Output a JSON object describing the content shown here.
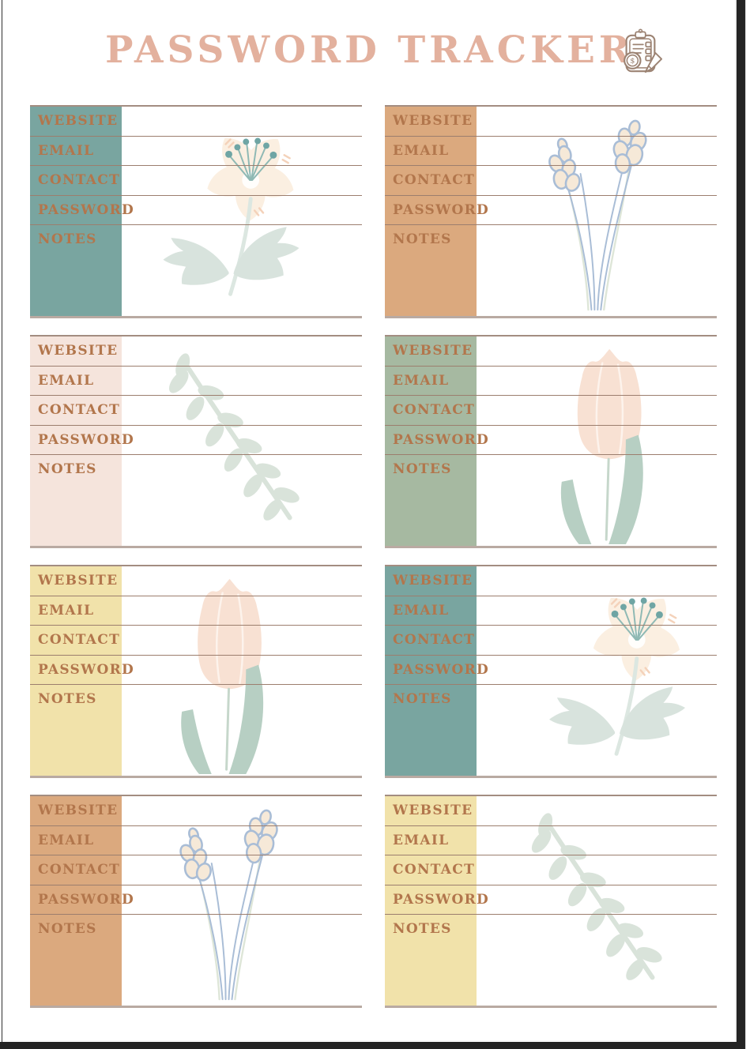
{
  "page": {
    "title": "PASSWORD TRACKER",
    "header_icon": "clipboard-dollar-pencil-icon"
  },
  "field_labels": [
    "WEBSITE",
    "EMAIL",
    "CONTACT",
    "PASSWORD",
    "NOTES"
  ],
  "theme": {
    "page_background": "#ffffff",
    "title_color": "#e3b19e",
    "label_color": "#b2764c",
    "row_line_color": "#9c7e6e",
    "card_top_line_color": "#a38d81",
    "card_bottom_line_color": "#b9aaa2",
    "icon_outline_color": "#9c8373",
    "viewer_edge_color": "#242424"
  },
  "illustration_colors": {
    "blossom_petal": "#fbefe1",
    "blossom_accent": "#f4d2ba",
    "blossom_stamen": "#6fa5a4",
    "leaf_sage": "#d8e3dd",
    "lavender_bud_fill": "#f6e9d8",
    "lavender_outline": "#a9bdd6",
    "tulip_petal": "#f8e1d3",
    "tulip_leaf": "#b7cfc3"
  },
  "cards": [
    {
      "id": "card-1-teal-blossom",
      "sidebar_color": "#79a5a0",
      "illustration": "blossom",
      "illo_dx": 0
    },
    {
      "id": "card-2-tan-lavender",
      "sidebar_color": "#dba97e",
      "illustration": "lavender",
      "illo_dx": 0
    },
    {
      "id": "card-3-blush-eucalyptus",
      "sidebar_color": "#f5e4dc",
      "illustration": "eucalyptus",
      "illo_dx": 0
    },
    {
      "id": "card-4-sage-tulip",
      "sidebar_color": "#a6b9a1",
      "illustration": "tulip",
      "illo_dx": 0
    },
    {
      "id": "card-5-yellow-tulip",
      "sidebar_color": "#f1e2aa",
      "illustration": "tulip",
      "illo_dx": -32
    },
    {
      "id": "card-6-teal-blossom",
      "sidebar_color": "#79a5a0",
      "illustration": "blossom",
      "illo_dx": 40
    },
    {
      "id": "card-7-tan-lavender",
      "sidebar_color": "#dba97e",
      "illustration": "lavender",
      "illo_dx": -18
    },
    {
      "id": "card-8-yellow-eucalyptus",
      "sidebar_color": "#f1e2aa",
      "illustration": "eucalyptus",
      "illo_dx": 10
    }
  ]
}
